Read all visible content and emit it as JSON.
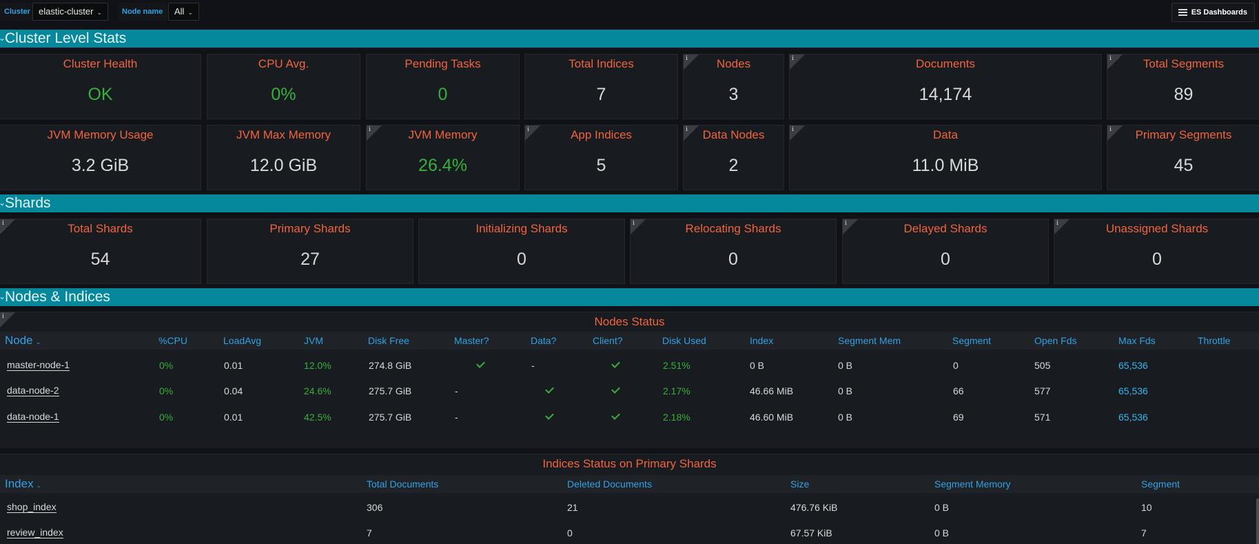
{
  "topbar": {
    "cluster_label": "Cluster",
    "cluster_value": "elastic-cluster",
    "node_label": "Node name",
    "node_value": "All",
    "dashboards_button": "ES Dashboards"
  },
  "rows": {
    "cluster": "Cluster Level Stats",
    "shards": "Shards",
    "nodes": "Nodes & Indices"
  },
  "cluster_stats": [
    {
      "title": "Cluster Health",
      "value": "OK"
    },
    {
      "title": "CPU Avg.",
      "value": "0%"
    },
    {
      "title": "Pending Tasks",
      "value": "0"
    },
    {
      "title": "Total Indices",
      "value": "7"
    },
    {
      "title": "Nodes",
      "value": "3"
    },
    {
      "title": "Documents",
      "value": "14,174"
    },
    {
      "title": "Total Segments",
      "value": "89"
    },
    {
      "title": "JVM Memory Usage",
      "value": "3.2 GiB"
    },
    {
      "title": "JVM Max Memory",
      "value": "12.0 GiB"
    },
    {
      "title": "JVM Memory",
      "value": "26.4%"
    },
    {
      "title": "App Indices",
      "value": "5"
    },
    {
      "title": "Data Nodes",
      "value": "2"
    },
    {
      "title": "Data",
      "value": "11.0 MiB"
    },
    {
      "title": "Primary Segments",
      "value": "45"
    }
  ],
  "shard_stats": [
    {
      "title": "Total Shards",
      "value": "54"
    },
    {
      "title": "Primary Shards",
      "value": "27"
    },
    {
      "title": "Initializing Shards",
      "value": "0"
    },
    {
      "title": "Relocating Shards",
      "value": "0"
    },
    {
      "title": "Delayed Shards",
      "value": "0"
    },
    {
      "title": "Unassigned Shards",
      "value": "0"
    }
  ],
  "info_icon": "i",
  "nodes_table": {
    "title": "Nodes Status",
    "columns": [
      "Node",
      "%CPU",
      "LoadAvg",
      "JVM",
      "Disk Free",
      "Master?",
      "Data?",
      "Client?",
      "Disk Used",
      "Index",
      "Segment Mem",
      "Segment",
      "Open Fds",
      "Max Fds",
      "Throttle"
    ],
    "rows": [
      {
        "node": "master-node-1",
        "cpu": "0%",
        "load": "0.01",
        "jvm": "12.0%",
        "disk_free": "274.8 GiB",
        "master": "check",
        "data": "-",
        "client": "check",
        "disk_used": "2.51%",
        "index": "0 B",
        "segment_mem": "0 B",
        "segment": "0",
        "open_fds": "505",
        "max_fds": "65,536"
      },
      {
        "node": "data-node-2",
        "cpu": "0%",
        "load": "0.04",
        "jvm": "24.6%",
        "disk_free": "275.7 GiB",
        "master": "-",
        "data": "check",
        "client": "check",
        "disk_used": "2.17%",
        "index": "46.66 MiB",
        "segment_mem": "0 B",
        "segment": "66",
        "open_fds": "577",
        "max_fds": "65,536"
      },
      {
        "node": "data-node-1",
        "cpu": "0%",
        "load": "0.01",
        "jvm": "42.5%",
        "disk_free": "275.7 GiB",
        "master": "-",
        "data": "check",
        "client": "check",
        "disk_used": "2.18%",
        "index": "46.60 MiB",
        "segment_mem": "0 B",
        "segment": "69",
        "open_fds": "571",
        "max_fds": "65,536"
      }
    ]
  },
  "indices_table": {
    "title": "Indices Status on Primary Shards",
    "columns": [
      "Index",
      "Total Documents",
      "Deleted Documents",
      "Size",
      "Segment Memory",
      "Segment"
    ],
    "rows": [
      {
        "index": "shop_index",
        "total_docs": "306",
        "deleted_docs": "21",
        "size": "476.76 KiB",
        "segment_mem": "0 B",
        "segment": "10"
      },
      {
        "index": "review_index",
        "total_docs": "7",
        "deleted_docs": "0",
        "size": "67.57 KiB",
        "segment_mem": "0 B",
        "segment": "7"
      }
    ]
  },
  "colors": {
    "accent_row": "#05889b",
    "title_orange": "#f2643e",
    "ok_green": "#37b03c",
    "link_blue": "#33a2e5"
  }
}
